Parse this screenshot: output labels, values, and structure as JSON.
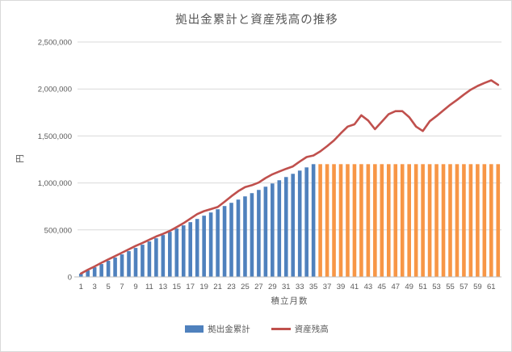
{
  "chart_data": {
    "type": "combo-bar-line",
    "title": "拠出金累計と資産残高の推移",
    "xlabel": "積立月数",
    "ylabel": "円",
    "ylim": [
      0,
      2500000
    ],
    "grid": "horizontal",
    "legend_position": "bottom",
    "y_ticks": [
      0,
      500000,
      1000000,
      1500000,
      2000000,
      2500000
    ],
    "y_tick_labels": [
      "0",
      "500,000",
      "1,000,000",
      "1,500,000",
      "2,000,000",
      "2,500,000"
    ],
    "x_categories": [
      1,
      2,
      3,
      4,
      5,
      6,
      7,
      8,
      9,
      10,
      11,
      12,
      13,
      14,
      15,
      16,
      17,
      18,
      19,
      20,
      21,
      22,
      23,
      24,
      25,
      26,
      27,
      28,
      29,
      30,
      31,
      32,
      33,
      34,
      35,
      36,
      37,
      38,
      39,
      40,
      41,
      42,
      43,
      44,
      45,
      46,
      47,
      48,
      49,
      50,
      51,
      52,
      53,
      54,
      55,
      56,
      57,
      58,
      59,
      60,
      61,
      62
    ],
    "x_tick_labels": [
      "1",
      "3",
      "5",
      "7",
      "9",
      "11",
      "13",
      "15",
      "17",
      "19",
      "21",
      "23",
      "25",
      "27",
      "29",
      "31",
      "33",
      "35",
      "37",
      "39",
      "41",
      "43",
      "45",
      "47",
      "49",
      "51",
      "53",
      "55",
      "57",
      "59",
      "61"
    ],
    "x_tick_step": 2,
    "contribution_months": 35,
    "series": [
      {
        "name": "拠出金累計",
        "type": "bar",
        "color_contribution_phase": "#4F81BD",
        "color_post_contribution_phase": "#F79646",
        "values": [
          34286,
          68571,
          102857,
          137143,
          171429,
          205714,
          240000,
          274286,
          308571,
          342857,
          377143,
          411429,
          445714,
          480000,
          514286,
          548571,
          582857,
          617143,
          651429,
          685714,
          720000,
          754286,
          788571,
          822857,
          857143,
          891429,
          925714,
          960000,
          994286,
          1028571,
          1062857,
          1097143,
          1131429,
          1165714,
          1200000,
          1200000,
          1200000,
          1200000,
          1200000,
          1200000,
          1200000,
          1200000,
          1200000,
          1200000,
          1200000,
          1200000,
          1200000,
          1200000,
          1200000,
          1200000,
          1200000,
          1200000,
          1200000,
          1200000,
          1200000,
          1200000,
          1200000,
          1200000,
          1200000,
          1200000,
          1200000,
          1200000
        ]
      },
      {
        "name": "資産残高",
        "type": "line",
        "color": "#C0504D",
        "values": [
          36000,
          76000,
          112000,
          150000,
          186000,
          222000,
          258000,
          294000,
          330000,
          362000,
          396000,
          430000,
          458000,
          490000,
          530000,
          572000,
          620000,
          668000,
          700000,
          722000,
          744000,
          800000,
          858000,
          912000,
          956000,
          976000,
          1004000,
          1052000,
          1092000,
          1122000,
          1150000,
          1176000,
          1228000,
          1276000,
          1292000,
          1336000,
          1392000,
          1452000,
          1528000,
          1600000,
          1624000,
          1720000,
          1664000,
          1572000,
          1652000,
          1732000,
          1764000,
          1764000,
          1700000,
          1600000,
          1552000,
          1656000,
          1712000,
          1772000,
          1832000,
          1884000,
          1940000,
          1992000,
          2032000,
          2064000,
          2092000,
          2044000
        ]
      }
    ],
    "colors": {
      "gridline": "#D9D9D9",
      "axis_line": "#BFBFBF",
      "text": "#595959",
      "background": "#FFFFFF",
      "border": "#D9D9D9"
    }
  },
  "legend": {
    "items": [
      {
        "label": "拠出金累計",
        "swatch": "bar",
        "color": "#4F81BD"
      },
      {
        "label": "資産残高",
        "swatch": "line",
        "color": "#C0504D"
      }
    ]
  }
}
